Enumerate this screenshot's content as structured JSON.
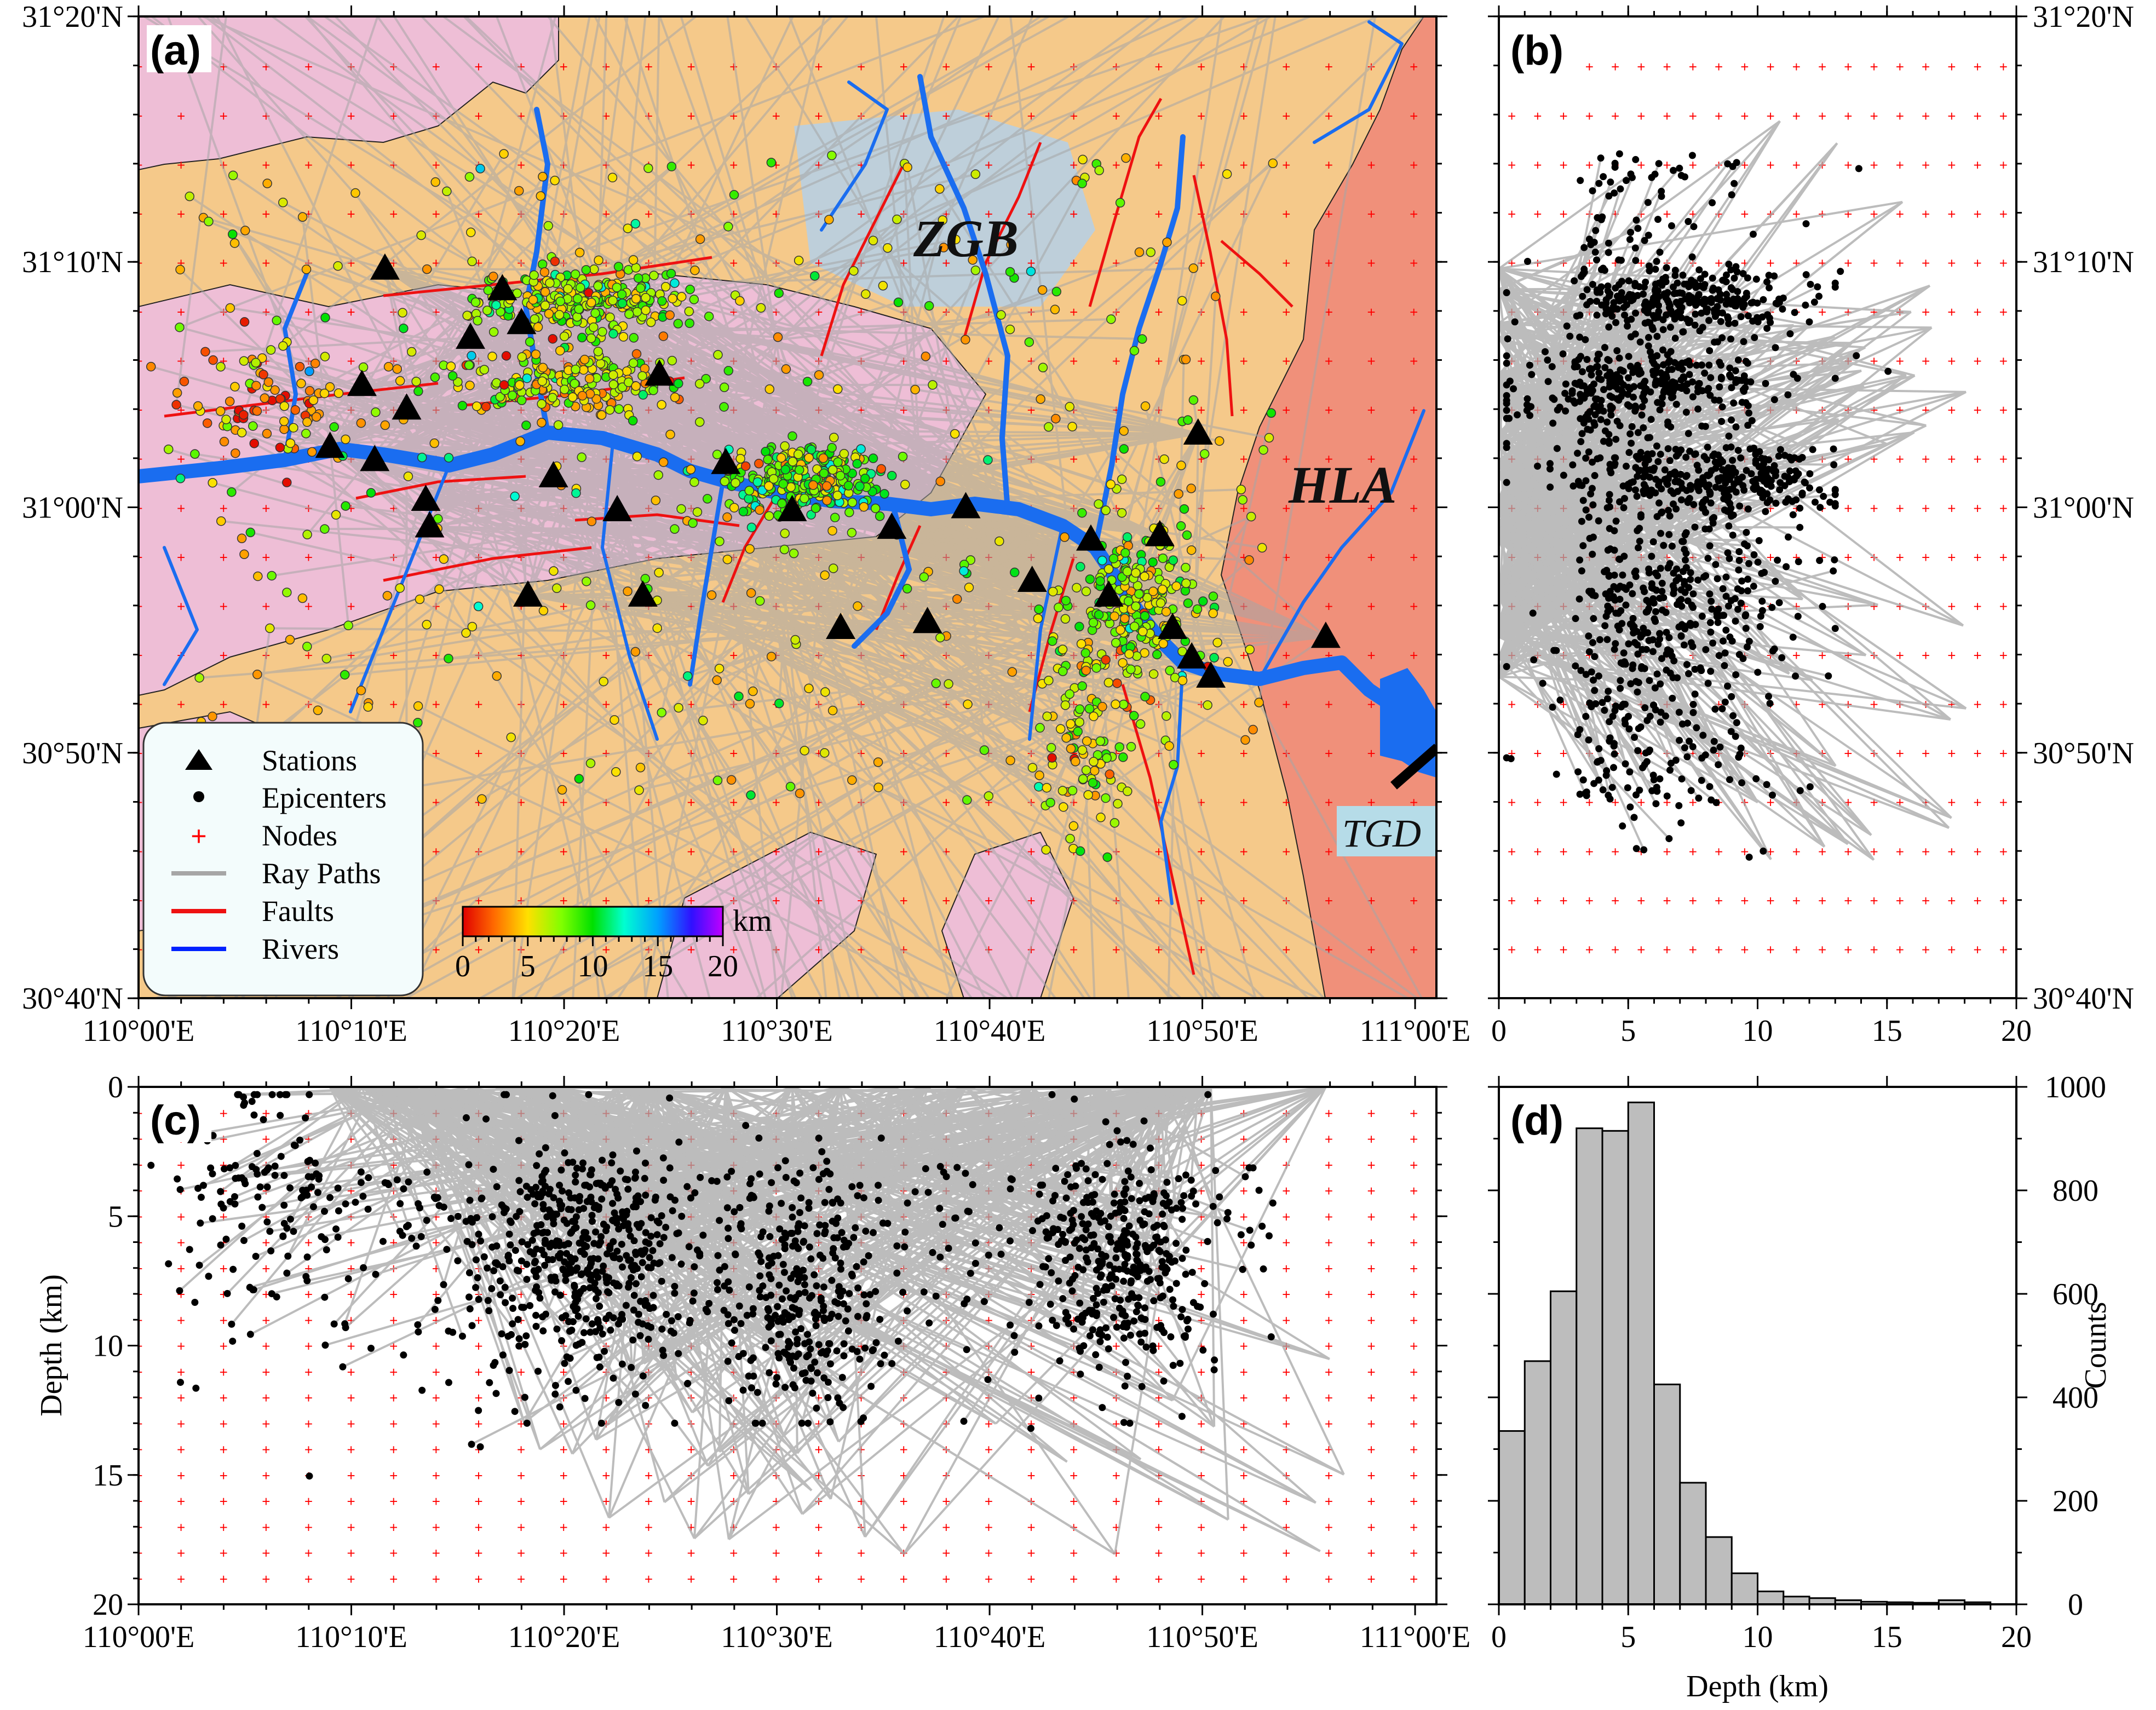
{
  "figure": {
    "panels": {
      "a": "(a)",
      "b": "(b)",
      "c": "(c)",
      "d": "(d)"
    },
    "regions": {
      "zgb": "ZGB",
      "hla": "HLA",
      "tgd": "TGD"
    },
    "legend": {
      "items": [
        {
          "key": "stations",
          "label": "Stations",
          "symbol": "triangle",
          "color": "#000000"
        },
        {
          "key": "epicenters",
          "label": "Epicenters",
          "symbol": "dot",
          "color": "#000000"
        },
        {
          "key": "nodes",
          "label": "Nodes",
          "symbol": "plus",
          "color": "#ff0000"
        },
        {
          "key": "rays",
          "label": "Ray Paths",
          "symbol": "line",
          "color": "#a6a6a6"
        },
        {
          "key": "faults",
          "label": "Faults",
          "symbol": "line",
          "color": "#ff0000"
        },
        {
          "key": "rivers",
          "label": "Rivers",
          "symbol": "line",
          "color": "#0022ff"
        }
      ]
    },
    "colorbar": {
      "unit": "km",
      "ticks": [
        "0",
        "5",
        "10",
        "15",
        "20"
      ],
      "min": 0,
      "max": 20
    },
    "colors": {
      "background_orange": "#f5c98a",
      "pink": "#eebed6",
      "salmon": "#f0907a",
      "light_blue": "#b4d0e8",
      "river": "#1a6df0",
      "ray": "#a6a6a6",
      "fault": "#ee1111",
      "hist_bar": "#bdbdbd",
      "tgd_box": "#b6dce8"
    }
  },
  "chart_data": [
    {
      "panel": "a",
      "type": "scatter",
      "title": "",
      "x_ticks": [
        "110°00'E",
        "110°10'E",
        "110°20'E",
        "110°30'E",
        "110°40'E",
        "110°50'E",
        "111°00'E"
      ],
      "y_ticks": [
        "30°40'N",
        "30°50'N",
        "31°00'N",
        "31°10'N",
        "31°20'N"
      ],
      "xlim": [
        110.0,
        111.0167
      ],
      "ylim": [
        30.6667,
        31.3333
      ],
      "stations": [
        {
          "lon": 110.15,
          "lat": 31.041
        },
        {
          "lon": 110.193,
          "lat": 31.162
        },
        {
          "lon": 110.175,
          "lat": 31.083
        },
        {
          "lon": 110.185,
          "lat": 31.032
        },
        {
          "lon": 110.21,
          "lat": 31.067
        },
        {
          "lon": 110.225,
          "lat": 31.005
        },
        {
          "lon": 110.228,
          "lat": 30.987
        },
        {
          "lon": 110.26,
          "lat": 31.115
        },
        {
          "lon": 110.285,
          "lat": 31.148
        },
        {
          "lon": 110.3,
          "lat": 31.125
        },
        {
          "lon": 110.305,
          "lat": 30.94
        },
        {
          "lon": 110.325,
          "lat": 31.021
        },
        {
          "lon": 110.375,
          "lat": 30.998
        },
        {
          "lon": 110.395,
          "lat": 30.94
        },
        {
          "lon": 110.408,
          "lat": 31.09
        },
        {
          "lon": 110.46,
          "lat": 31.03
        },
        {
          "lon": 110.512,
          "lat": 30.998
        },
        {
          "lon": 110.55,
          "lat": 30.918
        },
        {
          "lon": 110.59,
          "lat": 30.986
        },
        {
          "lon": 110.618,
          "lat": 30.922
        },
        {
          "lon": 110.648,
          "lat": 31.0
        },
        {
          "lon": 110.7,
          "lat": 30.95
        },
        {
          "lon": 110.746,
          "lat": 30.978
        },
        {
          "lon": 110.76,
          "lat": 30.94
        },
        {
          "lon": 110.8,
          "lat": 30.981
        },
        {
          "lon": 110.81,
          "lat": 30.918
        },
        {
          "lon": 110.825,
          "lat": 30.898
        },
        {
          "lon": 110.83,
          "lat": 31.05
        },
        {
          "lon": 110.84,
          "lat": 30.885
        },
        {
          "lon": 110.93,
          "lat": 30.912
        }
      ],
      "epicenter_clusters": [
        {
          "lon": 110.35,
          "lat": 31.14,
          "spread_lon": 0.07,
          "spread_lat": 0.012,
          "n": 260,
          "depth": 7
        },
        {
          "lon": 110.33,
          "lat": 31.085,
          "spread_lon": 0.09,
          "spread_lat": 0.01,
          "n": 200,
          "depth": 6
        },
        {
          "lon": 110.52,
          "lat": 31.02,
          "spread_lon": 0.05,
          "spread_lat": 0.012,
          "n": 260,
          "depth": 8
        },
        {
          "lon": 110.78,
          "lat": 30.93,
          "spread_lon": 0.04,
          "spread_lat": 0.03,
          "n": 220,
          "depth": 7
        },
        {
          "lon": 110.1,
          "lat": 31.07,
          "spread_lon": 0.05,
          "spread_lat": 0.02,
          "n": 80,
          "depth": 3
        },
        {
          "lon": 110.74,
          "lat": 30.84,
          "spread_lon": 0.03,
          "spread_lat": 0.03,
          "n": 90,
          "depth": 6
        }
      ],
      "nodes_lon_step": 0.0333,
      "nodes_lat_step": 0.0333
    },
    {
      "panel": "b",
      "type": "scatter",
      "xlabel": "",
      "x_ticks": [
        "0",
        "5",
        "10",
        "15",
        "20"
      ],
      "y_ticks": [
        "30°40'N",
        "30°50'N",
        "31°00'N",
        "31°10'N",
        "31°20'N"
      ],
      "xlim": [
        0,
        20
      ],
      "ylim": [
        30.6667,
        31.3333
      ]
    },
    {
      "panel": "c",
      "type": "scatter",
      "ylabel": "Depth (km)",
      "x_ticks": [
        "110°00'E",
        "110°10'E",
        "110°20'E",
        "110°30'E",
        "110°40'E",
        "110°50'E",
        "111°00'E"
      ],
      "y_ticks": [
        "0",
        "5",
        "10",
        "15",
        "20"
      ],
      "xlim": [
        110.0,
        111.0167
      ],
      "ylim": [
        0,
        20
      ]
    },
    {
      "panel": "d",
      "type": "bar",
      "xlabel": "Depth (km)",
      "ylabel": "Counts",
      "x_ticks": [
        "0",
        "5",
        "10",
        "15",
        "20"
      ],
      "y_ticks": [
        "0",
        "200",
        "400",
        "600",
        "800",
        "1000"
      ],
      "xlim": [
        0,
        20
      ],
      "ylim": [
        0,
        1000
      ],
      "bin_width": 1,
      "bin_starts": [
        0,
        1,
        2,
        3,
        4,
        5,
        6,
        7,
        8,
        9,
        10,
        11,
        12,
        13,
        14,
        15,
        16,
        17,
        18
      ],
      "values": [
        335,
        470,
        605,
        920,
        915,
        970,
        425,
        235,
        130,
        60,
        25,
        15,
        12,
        8,
        5,
        4,
        3,
        8,
        4
      ]
    }
  ]
}
